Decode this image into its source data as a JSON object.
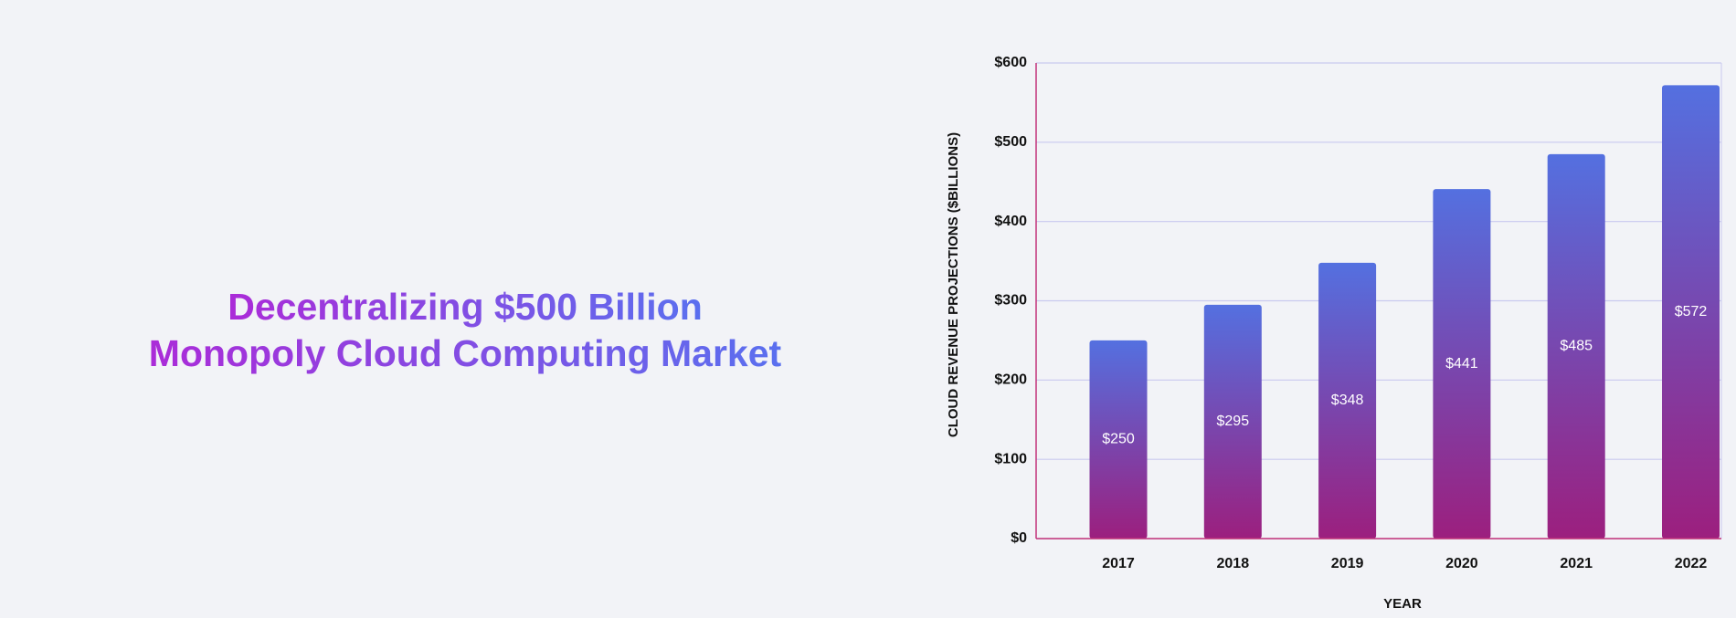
{
  "chart_data": {
    "type": "bar",
    "title": [
      "Decentralizing $500 Billion",
      "Monopoly Cloud Computing Market"
    ],
    "x_label": "YEAR",
    "y_label": "CLOUD REVENUE PROJECTIONS ($BILLIONS)",
    "categories": [
      "2017",
      "2018",
      "2019",
      "2020",
      "2021",
      "2022"
    ],
    "values": [
      250,
      295,
      348,
      441,
      485,
      572
    ],
    "value_labels": [
      "$250",
      "$295",
      "$348",
      "$441",
      "$485",
      "$572"
    ],
    "color": [
      "#5470e0",
      "#9c1f7e"
    ],
    "ylim": [
      0,
      600
    ],
    "yticks": [
      {
        "value": 0,
        "label": "$0"
      },
      {
        "value": 100,
        "label": "$100"
      },
      {
        "value": 200,
        "label": "$200"
      },
      {
        "value": 300,
        "label": "$300"
      },
      {
        "value": 400,
        "label": "$400"
      },
      {
        "value": 500,
        "label": "$500"
      },
      {
        "value": 600,
        "label": "$600"
      }
    ],
    "grid": true
  }
}
